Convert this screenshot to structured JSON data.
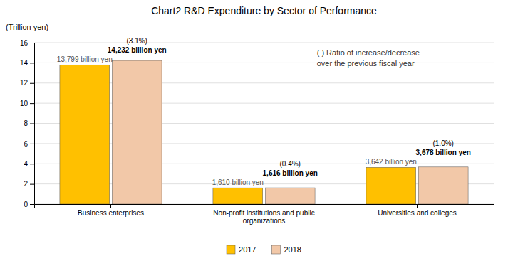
{
  "chart_data": {
    "type": "bar",
    "title": "Chart2   R&D Expenditure by Sector of Performance",
    "y_label": "(Trillion yen)",
    "categories": [
      "Business enterprises",
      "Non-profit institutions and public\norganizations",
      "Universities and colleges"
    ],
    "series": [
      {
        "name": "2017",
        "color": "#FFC000",
        "values": [
          13.799,
          1.61,
          3.642
        ],
        "value_labels": [
          "13,799 billion yen",
          "1,610 billion yen",
          "3,642 billion yen"
        ]
      },
      {
        "name": "2018",
        "color": "#F2C8A8",
        "values": [
          14.232,
          1.616,
          3.678
        ],
        "value_labels": [
          "14,232 billion yen",
          "1,616 billion yen",
          "3,678 billion yen"
        ],
        "ratio_labels": [
          "(3.1%)",
          "(0.4%)",
          "(1.0%)"
        ]
      }
    ],
    "annotations": [
      "( )  Ratio of increase/decrease",
      "over the previous fiscal year"
    ],
    "ylim": [
      0,
      16
    ],
    "yticks": [
      0,
      2,
      4,
      6,
      8,
      10,
      12,
      14,
      16
    ],
    "grid": true,
    "data_labels": true,
    "legend": "bottom"
  }
}
